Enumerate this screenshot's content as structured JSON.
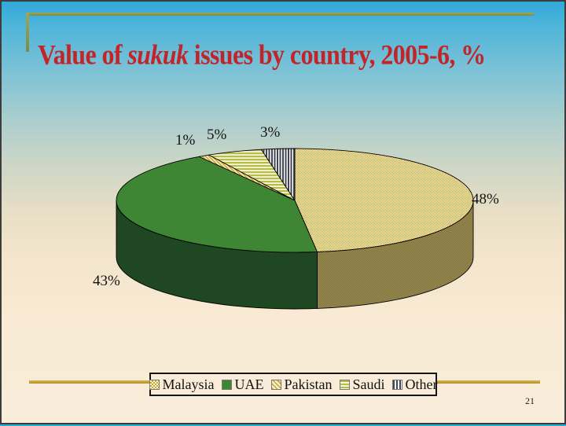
{
  "slide": {
    "title": {
      "prefix": "Value of ",
      "italic": "sukuk",
      "suffix": " issues by country, 2005-6, %"
    },
    "page_number": "21",
    "colors": {
      "title_text": "#c32427",
      "top_rule_olive": "#879a52",
      "bottom_rule_gold": "#c3a032",
      "background_top": "#2ea8d8",
      "background_bottom": "#f9edda"
    }
  },
  "chart_data": {
    "type": "pie",
    "style": "3d",
    "title": "Value of sukuk issues by country, 2005-6, %",
    "unit": "%",
    "categories": [
      "Malaysia",
      "UAE",
      "Pakistan",
      "Saudi",
      "Other"
    ],
    "values": [
      48,
      43,
      1,
      5,
      3
    ],
    "start_angle_deg": 0,
    "direction": "clockwise",
    "legend_position": "bottom",
    "slices": [
      {
        "name": "Malaysia",
        "value": 48,
        "label": "48%",
        "fill_style": "checker",
        "top_fg": "#c9a42c",
        "top_bg": "#fdf9e3",
        "side_fg": "#a08a2c",
        "side_bg": "#7a7465"
      },
      {
        "name": "UAE",
        "value": 43,
        "label": "43%",
        "fill_style": "solid",
        "top": "#3e8633",
        "side": "#1f4721"
      },
      {
        "name": "Pakistan",
        "value": 1,
        "label": "1%",
        "fill_style": "diagonal-stripes",
        "fg": "#c9a42c",
        "bg": "#f7f0cc"
      },
      {
        "name": "Saudi",
        "value": 5,
        "label": "5%",
        "fill_style": "horizontal-stripes",
        "fg": "#b6bd4a",
        "bg": "#f8f6d8"
      },
      {
        "name": "Other",
        "value": 3,
        "label": "3%",
        "fill_style": "vertical-stripes",
        "fg": "#434653",
        "bg": "#fcfcfc"
      }
    ]
  }
}
